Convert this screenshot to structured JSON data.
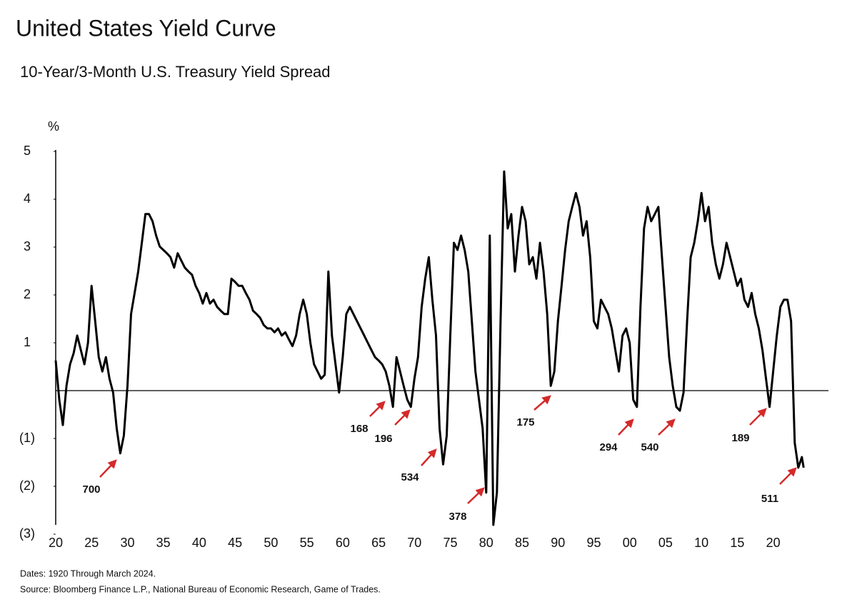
{
  "chart_data": {
    "type": "line",
    "title": "United States Yield Curve",
    "subtitle": "10-Year/3-Month U.S. Treasury Yield Spread",
    "y_label": "%",
    "notes": [
      "Dates: 1920 Through March 2024.",
      "Source: Bloomberg Finance L.P., National Bureau of Economic Research, Game of Trades."
    ],
    "annotations": [
      "700",
      "168",
      "196",
      "534",
      "378",
      "175",
      "294",
      "540",
      "189",
      "511"
    ],
    "xlim": [
      1920,
      2028
    ],
    "ylim": [
      -3,
      5
    ],
    "xticks": [
      {
        "value": 1920,
        "label": "20"
      },
      {
        "value": 1925,
        "label": "25"
      },
      {
        "value": 1930,
        "label": "30"
      },
      {
        "value": 1935,
        "label": "35"
      },
      {
        "value": 1940,
        "label": "40"
      },
      {
        "value": 1945,
        "label": "45"
      },
      {
        "value": 1950,
        "label": "50"
      },
      {
        "value": 1955,
        "label": "55"
      },
      {
        "value": 1960,
        "label": "60"
      },
      {
        "value": 1965,
        "label": "65"
      },
      {
        "value": 1970,
        "label": "70"
      },
      {
        "value": 1975,
        "label": "75"
      },
      {
        "value": 1980,
        "label": "80"
      },
      {
        "value": 1985,
        "label": "85"
      },
      {
        "value": 1990,
        "label": "90"
      },
      {
        "value": 1995,
        "label": "95"
      },
      {
        "value": 2000,
        "label": "00"
      },
      {
        "value": 2005,
        "label": "05"
      },
      {
        "value": 2010,
        "label": "10"
      },
      {
        "value": 2015,
        "label": "15"
      },
      {
        "value": 2020,
        "label": "20"
      }
    ],
    "yticks": [
      5,
      4,
      3,
      2,
      1,
      {
        "value": -1,
        "label": "(1)"
      },
      {
        "value": -2,
        "label": "(2)"
      },
      {
        "value": -3,
        "label": "(3)"
      }
    ],
    "zero_line": 0,
    "series": [
      {
        "name": "10-Year/3-Month spread",
        "color": "#000000",
        "x": [
          1920,
          1920.5,
          1921,
          1921.5,
          1922,
          1922.5,
          1923,
          1923.5,
          1924,
          1924.5,
          1925,
          1925.5,
          1926,
          1926.5,
          1927,
          1927.5,
          1928,
          1928.5,
          1929,
          1929.5,
          1930,
          1930.5,
          1931,
          1931.5,
          1932,
          1932.5,
          1933,
          1933.5,
          1934,
          1934.5,
          1935,
          1935.5,
          1936,
          1936.5,
          1937,
          1937.5,
          1938,
          1938.5,
          1939,
          1939.5,
          1940,
          1940.5,
          1941,
          1941.5,
          1942,
          1942.5,
          1943,
          1943.5,
          1944,
          1944.5,
          1945,
          1945.5,
          1946,
          1946.5,
          1947,
          1947.5,
          1948,
          1948.5,
          1949,
          1949.5,
          1950,
          1950.5,
          1951,
          1951.5,
          1952,
          1952.5,
          1953,
          1953.5,
          1954,
          1954.5,
          1955,
          1955.5,
          1956,
          1956.5,
          1957,
          1957.5,
          1958,
          1958.5,
          1959,
          1959.5,
          1960,
          1960.5,
          1961,
          1961.5,
          1962,
          1962.5,
          1963,
          1963.5,
          1964,
          1964.5,
          1965,
          1965.5,
          1966,
          1966.5,
          1967,
          1967.5,
          1968,
          1968.5,
          1969,
          1969.5,
          1970,
          1970.5,
          1971,
          1971.5,
          1972,
          1972.5,
          1973,
          1973.5,
          1974,
          1974.5,
          1975,
          1975.5,
          1976,
          1976.5,
          1977,
          1977.5,
          1978,
          1978.5,
          1979,
          1979.5,
          1980,
          1980.5,
          1981,
          1981.5,
          1982,
          1982.5,
          1983,
          1983.5,
          1984,
          1984.5,
          1985,
          1985.5,
          1986,
          1986.5,
          1987,
          1987.5,
          1988,
          1988.5,
          1989,
          1989.5,
          1990,
          1990.5,
          1991,
          1991.5,
          1992,
          1992.5,
          1993,
          1993.5,
          1994,
          1994.5,
          1995,
          1995.5,
          1996,
          1996.5,
          1997,
          1997.5,
          1998,
          1998.5,
          1999,
          1999.5,
          2000,
          2000.5,
          2001,
          2001.5,
          2002,
          2002.5,
          2003,
          2003.5,
          2004,
          2004.5,
          2005,
          2005.5,
          2006,
          2006.5,
          2007,
          2007.5,
          2008,
          2008.5,
          2009,
          2009.5,
          2010,
          2010.5,
          2011,
          2011.5,
          2012,
          2012.5,
          2013,
          2013.5,
          2014,
          2014.5,
          2015,
          2015.5,
          2016,
          2016.5,
          2017,
          2017.5,
          2018,
          2018.5,
          2019,
          2019.5,
          2020,
          2020.5,
          2021,
          2021.5,
          2022,
          2022.5,
          2023,
          2023.5,
          2024,
          2024.25
        ],
        "values": [
          0.63,
          -0.19,
          -0.72,
          0.1,
          0.55,
          0.78,
          1.15,
          0.85,
          0.55,
          1.0,
          2.19,
          1.45,
          0.7,
          0.4,
          0.7,
          0.25,
          -0.04,
          -0.79,
          -1.31,
          -0.94,
          0.1,
          1.6,
          2.04,
          2.49,
          3.09,
          3.69,
          3.69,
          3.54,
          3.24,
          3.01,
          2.94,
          2.87,
          2.79,
          2.57,
          2.87,
          2.72,
          2.57,
          2.49,
          2.42,
          2.19,
          2.04,
          1.82,
          2.04,
          1.82,
          1.9,
          1.75,
          1.67,
          1.6,
          1.6,
          2.34,
          2.27,
          2.19,
          2.19,
          2.04,
          1.9,
          1.67,
          1.6,
          1.52,
          1.37,
          1.3,
          1.3,
          1.22,
          1.3,
          1.15,
          1.22,
          1.07,
          0.93,
          1.15,
          1.6,
          1.9,
          1.6,
          1.0,
          0.55,
          0.4,
          0.25,
          0.33,
          2.49,
          1.15,
          0.55,
          -0.04,
          0.7,
          1.6,
          1.75,
          1.6,
          1.45,
          1.3,
          1.15,
          1.0,
          0.85,
          0.7,
          0.63,
          0.55,
          0.4,
          0.1,
          -0.34,
          0.7,
          0.4,
          0.1,
          -0.19,
          -0.34,
          0.25,
          0.7,
          1.75,
          2.34,
          2.79,
          1.9,
          1.15,
          -0.79,
          -1.54,
          -0.94,
          1.15,
          3.09,
          2.94,
          3.24,
          2.94,
          2.49,
          1.45,
          0.4,
          -0.19,
          -0.79,
          -2.13,
          3.24,
          -3.0,
          -2.13,
          1.45,
          4.58,
          3.39,
          3.69,
          2.49,
          3.24,
          3.84,
          3.54,
          2.64,
          2.79,
          2.34,
          3.09,
          2.49,
          1.6,
          0.1,
          0.4,
          1.45,
          2.19,
          2.94,
          3.54,
          3.84,
          4.13,
          3.84,
          3.24,
          3.54,
          2.79,
          1.45,
          1.3,
          1.9,
          1.75,
          1.6,
          1.3,
          0.85,
          0.4,
          1.15,
          1.3,
          1.0,
          -0.19,
          -0.34,
          1.75,
          3.39,
          3.84,
          3.54,
          3.69,
          3.84,
          2.79,
          1.75,
          0.7,
          0.1,
          -0.34,
          -0.42,
          -0.04,
          1.45,
          2.79,
          3.09,
          3.54,
          4.13,
          3.54,
          3.84,
          3.09,
          2.64,
          2.34,
          2.64,
          3.09,
          2.79,
          2.49,
          2.19,
          2.34,
          1.9,
          1.75,
          2.04,
          1.6,
          1.3,
          0.85,
          0.25,
          -0.34,
          0.4,
          1.15,
          1.75,
          1.9,
          1.9,
          1.45,
          -1.09,
          -1.61,
          -1.39,
          -1.61
        ]
      }
    ]
  }
}
